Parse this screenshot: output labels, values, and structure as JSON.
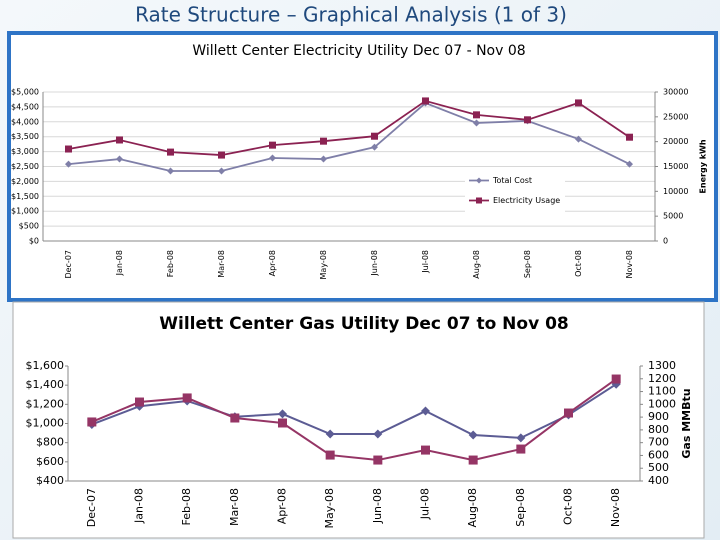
{
  "slide_title": "Rate Structure – Graphical Analysis (1 of 3)",
  "chart_data": [
    {
      "type": "line",
      "title": "Willett Center Electricity Utility Dec 07 - Nov 08",
      "categories": [
        "Dec-07",
        "Jan-08",
        "Feb-08",
        "Mar-08",
        "Apr-08",
        "May-08",
        "Jun-08",
        "Jul-08",
        "Aug-08",
        "Sep-08",
        "Oct-08",
        "Nov-08"
      ],
      "series": [
        {
          "name": "Total Cost",
          "color": "#7f7fa8",
          "marker": "diamond",
          "values": [
            2580,
            2750,
            2350,
            2350,
            2785,
            2750,
            3150,
            4630,
            3960,
            4030,
            3420,
            2580
          ]
        },
        {
          "name": "Electricity Usage",
          "color": "#8b2252",
          "marker": "square",
          "axis": "y2",
          "values": [
            18520,
            20340,
            17900,
            17300,
            19300,
            20100,
            21100,
            28200,
            25400,
            24400,
            27800,
            20900
          ]
        }
      ],
      "ylim": [
        0,
        5000
      ],
      "yticks": [
        {
          "value": 0,
          "label": "$0"
        },
        {
          "value": 500,
          "label": "$500"
        },
        {
          "value": 1000,
          "label": "$1,000"
        },
        {
          "value": 1500,
          "label": "$1,500"
        },
        {
          "value": 2000,
          "label": "$2,000"
        },
        {
          "value": 2500,
          "label": "$2,500"
        },
        {
          "value": 3000,
          "label": "$3,000"
        },
        {
          "value": 3500,
          "label": "$3,500"
        },
        {
          "value": 4000,
          "label": "$4,000"
        },
        {
          "value": 4500,
          "label": "$4,500"
        },
        {
          "value": 5000,
          "label": "$5,000"
        }
      ],
      "y2lim": [
        0,
        30000
      ],
      "y2ticks": [
        0,
        5000,
        10000,
        15000,
        20000,
        25000,
        30000
      ],
      "y2_label": "Energy kWh",
      "grid": true,
      "legend": "center right"
    },
    {
      "type": "line",
      "title": "Willett Center Gas Utility Dec 07 to Nov 08",
      "categories": [
        "Dec-07",
        "Jan-08",
        "Feb-08",
        "Mar-08",
        "Apr-08",
        "May-08",
        "Jun-08",
        "Jul-08",
        "Aug-08",
        "Sep-08",
        "Oct-08",
        "Nov-08"
      ],
      "series": [
        {
          "color": "#5c5c94",
          "marker": "diamond",
          "values": [
            990,
            1180,
            1235,
            1070,
            1100,
            890,
            890,
            1130,
            880,
            850,
            1090,
            1410
          ]
        },
        {
          "color": "#953565",
          "marker": "square",
          "axis": "y2",
          "values": [
            862,
            1018,
            1050,
            893,
            854,
            603,
            564,
            642,
            564,
            650,
            932,
            1198
          ]
        }
      ],
      "ylim": [
        400,
        1600
      ],
      "yticks": [
        {
          "value": 400,
          "label": "$400"
        },
        {
          "value": 600,
          "label": "$600"
        },
        {
          "value": 800,
          "label": "$800"
        },
        {
          "value": 1000,
          "label": "$1,000"
        },
        {
          "value": 1200,
          "label": "$1,200"
        },
        {
          "value": 1400,
          "label": "$1,400"
        },
        {
          "value": 1600,
          "label": "$1,600"
        }
      ],
      "y2lim": [
        400,
        1300
      ],
      "y2ticks": [
        400,
        500,
        600,
        700,
        800,
        900,
        1000,
        1100,
        1200,
        1300
      ],
      "y2_label": "Gas MMBtu",
      "grid": false
    }
  ]
}
